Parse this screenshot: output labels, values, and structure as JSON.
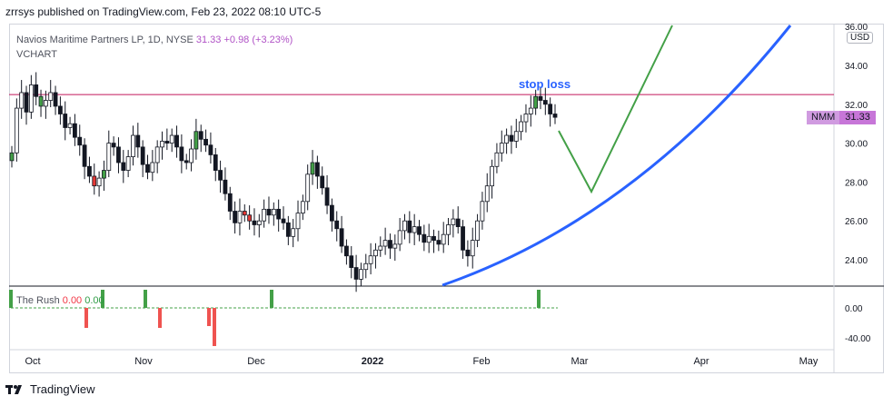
{
  "header": {
    "text": "zrrsys published on TradingView.com, Feb 23, 2022 08:10 UTC-5"
  },
  "legend": {
    "title": "Navios Maritime Partners LP, 1D, NYSE",
    "price": "31.33",
    "change": "+0.98 (+3.23%)",
    "sub": "VCHART"
  },
  "indicator": {
    "name": "The Rush",
    "v1": "0.00",
    "v2": "0.00"
  },
  "currency": "USD",
  "ticker": {
    "symbol": "NMM",
    "price": "31.33"
  },
  "annotation": "stop loss",
  "footer": {
    "brand": "TradingView"
  },
  "colors": {
    "up": "#43a047",
    "down": "#e53935",
    "neutral": "#131722",
    "trend": "#2962ff",
    "projection": "#43a047",
    "resistance": "#c2185b"
  },
  "chart_data": {
    "type": "candlestick",
    "y_ticks": [
      "36.00",
      "34.00",
      "32.00",
      "30.00",
      "28.00",
      "26.00",
      "24.00"
    ],
    "ylim": [
      22.4,
      36.2
    ],
    "x_ticks": [
      "Oct",
      "Nov",
      "Dec",
      "2022",
      "Feb",
      "Mar",
      "Apr",
      "May"
    ],
    "resistance": 32.5,
    "indicator_ticks": [
      "0.00",
      "-40.00"
    ],
    "closes": [
      29.5,
      31.8,
      32.6,
      31.6,
      33.0,
      32.4,
      31.9,
      32.2,
      32.6,
      31.9,
      31.5,
      30.8,
      31.0,
      30.3,
      29.9,
      28.8,
      28.3,
      27.8,
      28.2,
      28.6,
      30.0,
      29.8,
      29.0,
      28.6,
      29.3,
      30.4,
      29.8,
      28.9,
      28.5,
      29.0,
      29.8,
      30.1,
      30.0,
      30.4,
      29.8,
      29.1,
      29.0,
      29.7,
      30.6,
      30.2,
      29.9,
      29.4,
      28.6,
      28.1,
      27.4,
      26.5,
      25.9,
      26.5,
      26.3,
      26.0,
      25.8,
      26.0,
      26.6,
      26.3,
      26.6,
      26.1,
      25.9,
      25.2,
      25.6,
      26.4,
      27.0,
      28.4,
      29.0,
      28.3,
      27.7,
      26.8,
      26.0,
      25.6,
      24.7,
      24.2,
      23.6,
      23.0,
      23.5,
      23.8,
      24.2,
      24.5,
      24.7,
      25.0,
      24.6,
      24.8,
      25.5,
      26.0,
      25.4,
      25.7,
      25.3,
      24.9,
      25.2,
      25.0,
      24.8,
      25.3,
      25.8,
      26.1,
      25.7,
      24.5,
      24.2,
      25.0,
      26.0,
      27.0,
      27.8,
      28.8,
      29.5,
      30.0,
      30.4,
      30.1,
      30.6,
      31.1,
      31.5,
      31.8,
      32.4,
      32.2,
      32.0,
      31.5,
      31.33
    ],
    "trend_curve": [
      [
        487,
        314
      ],
      [
        600,
        260
      ],
      [
        700,
        210
      ],
      [
        800,
        140
      ],
      [
        870,
        28
      ]
    ],
    "projection": [
      [
        615,
        144
      ],
      [
        651,
        211
      ],
      [
        740,
        28
      ]
    ],
    "rush_up_bars": [
      12,
      113,
      160,
      299,
      593
    ],
    "rush_down_bars": [
      [
        95,
        361
      ],
      [
        176,
        361
      ],
      [
        230,
        359
      ],
      [
        236,
        381
      ]
    ]
  }
}
